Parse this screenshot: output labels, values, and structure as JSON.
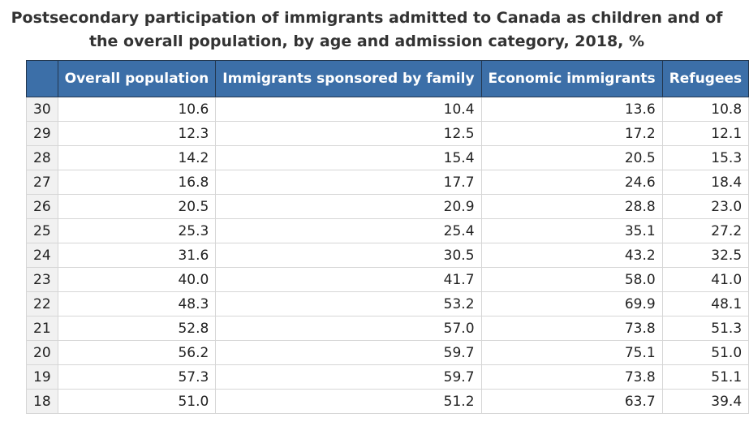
{
  "title": "Postsecondary participation of immigrants admitted to Canada as children and of the overall population, by age and admission category, 2018, %",
  "chart_data": {
    "type": "table",
    "title": "Postsecondary participation of immigrants admitted to Canada as children and of the overall population, by age and admission category, 2018, %",
    "row_header": "",
    "columns": [
      "Overall population",
      "Immigrants sponsored by family",
      "Economic immigrants",
      "Refugees"
    ],
    "rows": [
      {
        "label": "30",
        "values": [
          "10.6",
          "10.4",
          "13.6",
          "10.8"
        ]
      },
      {
        "label": "29",
        "values": [
          "12.3",
          "12.5",
          "17.2",
          "12.1"
        ]
      },
      {
        "label": "28",
        "values": [
          "14.2",
          "15.4",
          "20.5",
          "15.3"
        ]
      },
      {
        "label": "27",
        "values": [
          "16.8",
          "17.7",
          "24.6",
          "18.4"
        ]
      },
      {
        "label": "26",
        "values": [
          "20.5",
          "20.9",
          "28.8",
          "23.0"
        ]
      },
      {
        "label": "25",
        "values": [
          "25.3",
          "25.4",
          "35.1",
          "27.2"
        ]
      },
      {
        "label": "24",
        "values": [
          "31.6",
          "30.5",
          "43.2",
          "32.5"
        ]
      },
      {
        "label": "23",
        "values": [
          "40.0",
          "41.7",
          "58.0",
          "41.0"
        ]
      },
      {
        "label": "22",
        "values": [
          "48.3",
          "53.2",
          "69.9",
          "48.1"
        ]
      },
      {
        "label": "21",
        "values": [
          "52.8",
          "57.0",
          "73.8",
          "51.3"
        ]
      },
      {
        "label": "20",
        "values": [
          "56.2",
          "59.7",
          "75.1",
          "51.0"
        ]
      },
      {
        "label": "19",
        "values": [
          "57.3",
          "59.7",
          "73.8",
          "51.1"
        ]
      },
      {
        "label": "18",
        "values": [
          "51.0",
          "51.2",
          "63.7",
          "39.4"
        ]
      }
    ]
  }
}
